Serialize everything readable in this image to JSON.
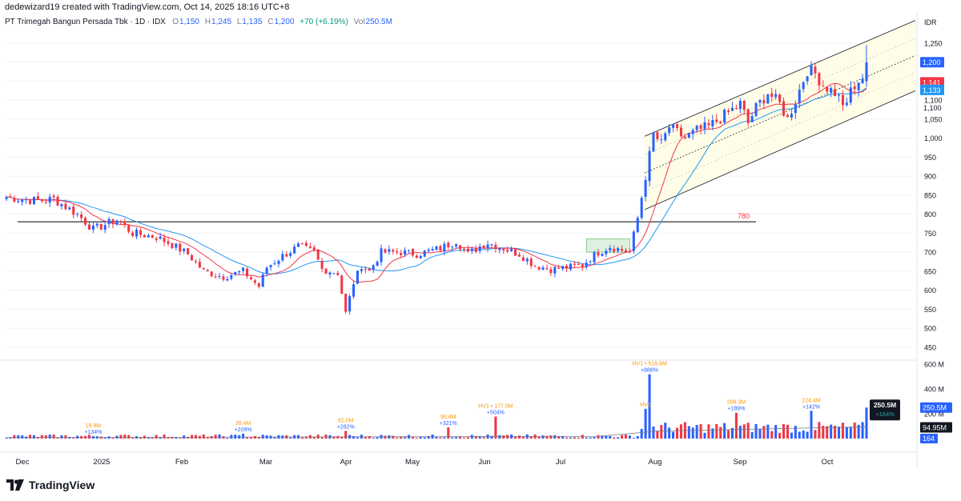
{
  "header": {
    "credit": "dedewizard19 created with TradingView.com, Oct 14, 2025 18:16 UTC+8"
  },
  "legend": {
    "symbol": "PT Trimegah Bangun Persada Tbk · 1D · IDX",
    "open_label": "O",
    "open": "1,150",
    "high_label": "H",
    "high": "1,245",
    "low_label": "L",
    "low": "1,135",
    "close_label": "C",
    "close": "1,200",
    "change": "+70 (+6.19%)",
    "vol_label": "Vol",
    "vol": "250.5M"
  },
  "brand": {
    "name": "TradingView"
  },
  "colors": {
    "up": "#2962ff",
    "down": "#f23645",
    "ma_fast": "#f23645",
    "ma_slow": "#2196f3",
    "grid": "#f0f3fa",
    "support_line": "#000000",
    "channel_fill": "#fffde7",
    "tick": "#131722"
  },
  "chart_data": [
    {
      "type": "candlestick",
      "currency": "IDR",
      "x_ticks": [
        "Dec",
        "2025",
        "Feb",
        "Mar",
        "Apr",
        "May",
        "Jun",
        "Jul",
        "Aug",
        "Sep",
        "Oct"
      ],
      "y_ticks": [
        "1,250",
        "1,200",
        "1,150",
        "1,100",
        "1,050",
        "1,000",
        "950",
        "900",
        "850",
        "800",
        "750",
        "700",
        "650",
        "600",
        "550",
        "500",
        "450"
      ],
      "ylim": [
        420,
        1290
      ],
      "keypoints": [
        [
          0,
          845
        ],
        [
          8,
          835
        ],
        [
          12,
          840
        ],
        [
          18,
          800
        ],
        [
          22,
          760
        ],
        [
          28,
          785
        ],
        [
          32,
          750
        ],
        [
          38,
          740
        ],
        [
          42,
          720
        ],
        [
          46,
          695
        ],
        [
          50,
          650
        ],
        [
          55,
          635
        ],
        [
          60,
          650
        ],
        [
          64,
          610
        ],
        [
          66,
          660
        ],
        [
          70,
          690
        ],
        [
          74,
          715
        ],
        [
          78,
          700
        ],
        [
          80,
          655
        ],
        [
          84,
          645
        ],
        [
          86,
          540
        ],
        [
          88,
          620
        ],
        [
          90,
          665
        ],
        [
          92,
          650
        ],
        [
          95,
          700
        ],
        [
          100,
          700
        ],
        [
          104,
          695
        ],
        [
          110,
          710
        ],
        [
          114,
          730
        ],
        [
          117,
          695
        ],
        [
          120,
          715
        ],
        [
          122,
          725
        ],
        [
          126,
          710
        ],
        [
          130,
          695
        ],
        [
          134,
          665
        ],
        [
          138,
          655
        ],
        [
          142,
          660
        ],
        [
          146,
          665
        ],
        [
          148,
          685
        ],
        [
          150,
          700
        ],
        [
          153,
          715
        ],
        [
          156,
          705
        ],
        [
          158,
          700
        ],
        [
          160,
          790
        ],
        [
          162,
          900
        ],
        [
          164,
          1010
        ],
        [
          166,
          985
        ],
        [
          168,
          1030
        ],
        [
          172,
          1000
        ],
        [
          175,
          1020
        ],
        [
          178,
          1030
        ],
        [
          182,
          1060
        ],
        [
          186,
          1090
        ],
        [
          188,
          1040
        ],
        [
          190,
          1080
        ],
        [
          193,
          1120
        ],
        [
          196,
          1090
        ],
        [
          198,
          1050
        ],
        [
          200,
          1100
        ],
        [
          203,
          1180
        ],
        [
          205,
          1170
        ],
        [
          207,
          1140
        ],
        [
          210,
          1120
        ],
        [
          213,
          1080
        ],
        [
          214,
          1130
        ],
        [
          216,
          1135
        ],
        [
          218,
          1200
        ]
      ],
      "support_level": 780,
      "support_label": "780",
      "series": [
        {
          "name": "last_close",
          "value": 1200,
          "label": "1,200"
        },
        {
          "name": "ma_fast",
          "value": 1141,
          "label": "1,141"
        },
        {
          "name": "ma_slow",
          "value": 1133,
          "label": "1,133"
        },
        {
          "name": "channel_mid",
          "value": 1100,
          "label": "1,100"
        }
      ]
    },
    {
      "type": "bar",
      "name": "Volume",
      "y_ticks": [
        "600 M",
        "400 M",
        "200 M"
      ],
      "ylim": [
        0,
        620
      ],
      "spikes": [
        {
          "i": 22,
          "value": 19.9,
          "label": "19.9M",
          "pct": "+134%"
        },
        {
          "i": 60,
          "value": 39.4,
          "label": "39.4M",
          "pct": "+209%"
        },
        {
          "i": 86,
          "value": 62.0,
          "label": "62.0M",
          "pct": "+282%"
        },
        {
          "i": 112,
          "value": 90.4,
          "label": "90.4M",
          "pct": "+321%"
        },
        {
          "i": 124,
          "value": 177.5,
          "label": "HV1 • 177.5M",
          "pct": "+504%"
        },
        {
          "i": 163,
          "value": 518.6,
          "label": "HV1 • 518.6M",
          "pct": "+888%"
        },
        {
          "i": 162,
          "value": 240,
          "label": "HV1",
          "pct": ""
        },
        {
          "i": 185,
          "value": 208.3,
          "label": "208.3M",
          "pct": "+189%"
        },
        {
          "i": 204,
          "value": 224.4,
          "label": "224.4M",
          "pct": "+142%"
        }
      ],
      "last_value": "250.5M",
      "last_pct": "+164%",
      "avg_value": "94.95M",
      "count": "164"
    }
  ]
}
